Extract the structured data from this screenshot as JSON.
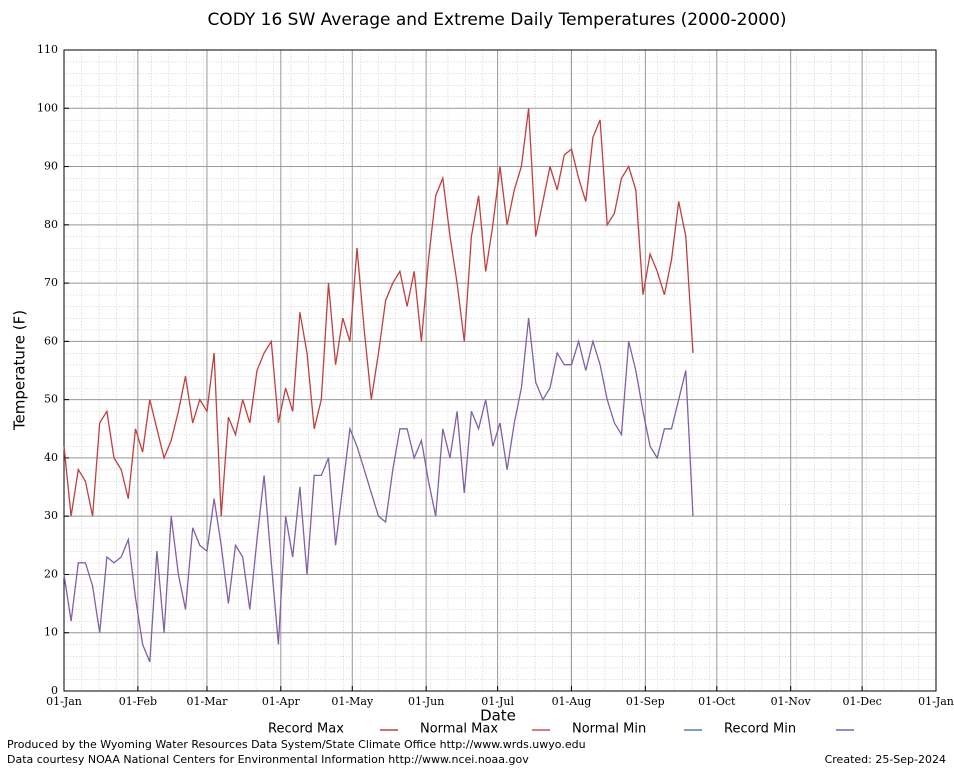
{
  "chart_data": {
    "type": "line",
    "title": "CODY 16 SW Average and Extreme Daily Temperatures (2000-2000)",
    "x_label": "Date",
    "y_label": "Temperature (F)",
    "credit_1": "Produced by the Wyoming Water Resources Data System/State Climate Office http://www.wrds.uwyo.edu",
    "credit_2": "Data courtesy NOAA National Centers for Environmental Information http://www.ncei.noaa.gov",
    "created": "Created:  25-Sep-2024",
    "xlim": [
      0,
      366
    ],
    "xticks": [
      {
        "value": 0,
        "label": "01-Jan"
      },
      {
        "value": 31,
        "label": "01-Feb"
      },
      {
        "value": 60,
        "label": "01-Mar"
      },
      {
        "value": 91,
        "label": "01-Apr"
      },
      {
        "value": 121,
        "label": "01-May"
      },
      {
        "value": 152,
        "label": "01-Jun"
      },
      {
        "value": 182,
        "label": "01-Jul"
      },
      {
        "value": 213,
        "label": "01-Aug"
      },
      {
        "value": 244,
        "label": "01-Sep"
      },
      {
        "value": 274,
        "label": "01-Oct"
      },
      {
        "value": 305,
        "label": "01-Nov"
      },
      {
        "value": 335,
        "label": "01-Dec"
      },
      {
        "value": 366,
        "label": "01-Jan"
      }
    ],
    "ylim": [
      0,
      110
    ],
    "yticks": [
      0,
      10,
      20,
      30,
      40,
      50,
      60,
      70,
      80,
      90,
      100,
      110
    ],
    "grid": true,
    "legend": "bottom",
    "x": [
      0,
      3,
      6,
      9,
      12,
      15,
      18,
      21,
      24,
      27,
      30,
      33,
      36,
      39,
      42,
      45,
      48,
      51,
      54,
      57,
      60,
      63,
      66,
      69,
      72,
      75,
      78,
      81,
      84,
      87,
      90,
      93,
      96,
      99,
      102,
      105,
      108,
      111,
      114,
      117,
      120,
      123,
      126,
      129,
      132,
      135,
      138,
      141,
      144,
      147,
      150,
      153,
      156,
      159,
      162,
      165,
      168,
      171,
      174,
      177,
      180,
      183,
      186,
      189,
      192,
      195,
      198,
      201,
      204,
      207,
      210,
      213,
      216,
      219,
      222,
      225,
      228,
      231,
      234,
      237,
      240,
      243,
      246,
      249,
      252,
      255,
      258,
      261,
      264
    ],
    "series": [
      {
        "name": "Record Max",
        "color": "#c04040",
        "values": [
          42,
          30,
          38,
          36,
          30,
          46,
          48,
          40,
          38,
          33,
          45,
          41,
          50,
          45,
          40,
          43,
          48,
          54,
          46,
          50,
          48,
          58,
          30,
          47,
          44,
          50,
          46,
          55,
          58,
          60,
          46,
          52,
          48,
          65,
          58,
          45,
          50,
          70,
          56,
          64,
          60,
          76,
          62,
          50,
          58,
          67,
          70,
          72,
          66,
          72,
          60,
          74,
          85,
          88,
          78,
          70,
          60,
          78,
          85,
          72,
          80,
          90,
          80,
          86,
          90,
          100,
          78,
          84,
          90,
          86,
          92,
          93,
          88,
          84,
          95,
          98,
          80,
          82,
          88,
          90,
          86,
          68,
          75,
          72,
          68,
          74,
          84,
          78,
          58
        ]
      },
      {
        "name": "Normal Max",
        "color": "#d05050",
        "values": [
          null,
          null,
          null,
          null,
          null,
          null,
          null,
          null,
          null,
          null,
          null,
          null,
          null,
          null,
          null,
          null,
          null,
          null,
          null,
          null,
          null,
          null,
          null,
          null,
          null,
          null,
          null,
          null,
          null,
          null,
          null,
          null,
          null,
          null,
          null,
          null,
          null,
          null,
          null,
          null,
          null,
          null,
          null,
          null,
          null,
          null,
          null,
          null,
          null,
          null,
          null,
          null,
          null,
          null,
          null,
          null,
          null,
          null,
          null,
          null,
          null,
          null,
          null,
          null,
          null,
          null,
          null,
          null,
          null,
          null,
          null,
          null,
          null,
          null,
          null,
          null,
          null,
          null,
          null,
          null,
          null,
          null,
          null,
          null,
          null,
          null,
          null,
          null,
          null
        ]
      },
      {
        "name": "Normal Min",
        "color": "#5080b0",
        "values": [
          null,
          null,
          null,
          null,
          null,
          null,
          null,
          null,
          null,
          null,
          null,
          null,
          null,
          null,
          null,
          null,
          null,
          null,
          null,
          null,
          null,
          null,
          null,
          null,
          null,
          null,
          null,
          null,
          null,
          null,
          null,
          null,
          null,
          null,
          null,
          null,
          null,
          null,
          null,
          null,
          null,
          null,
          null,
          null,
          null,
          null,
          null,
          null,
          null,
          null,
          null,
          null,
          null,
          null,
          null,
          null,
          null,
          null,
          null,
          null,
          null,
          null,
          null,
          null,
          null,
          null,
          null,
          null,
          null,
          null,
          null,
          null,
          null,
          null,
          null,
          null,
          null,
          null,
          null,
          null,
          null,
          null,
          null,
          null,
          null,
          null,
          null,
          null,
          null
        ]
      },
      {
        "name": "Record Min",
        "color": "#8060a8",
        "values": [
          20,
          12,
          22,
          22,
          18,
          10,
          23,
          22,
          23,
          26,
          16,
          8,
          5,
          24,
          10,
          30,
          20,
          14,
          28,
          25,
          24,
          33,
          25,
          15,
          25,
          23,
          14,
          26,
          37,
          22,
          8,
          30,
          23,
          35,
          20,
          37,
          37,
          40,
          25,
          35,
          45,
          42,
          38,
          34,
          30,
          29,
          38,
          45,
          45,
          40,
          43,
          36,
          30,
          45,
          40,
          48,
          34,
          48,
          45,
          50,
          42,
          46,
          38,
          46,
          52,
          64,
          53,
          50,
          52,
          58,
          56,
          56,
          60,
          55,
          60,
          56,
          50,
          46,
          44,
          60,
          55,
          48,
          42,
          40,
          45,
          45,
          50,
          55,
          30
        ]
      }
    ]
  }
}
